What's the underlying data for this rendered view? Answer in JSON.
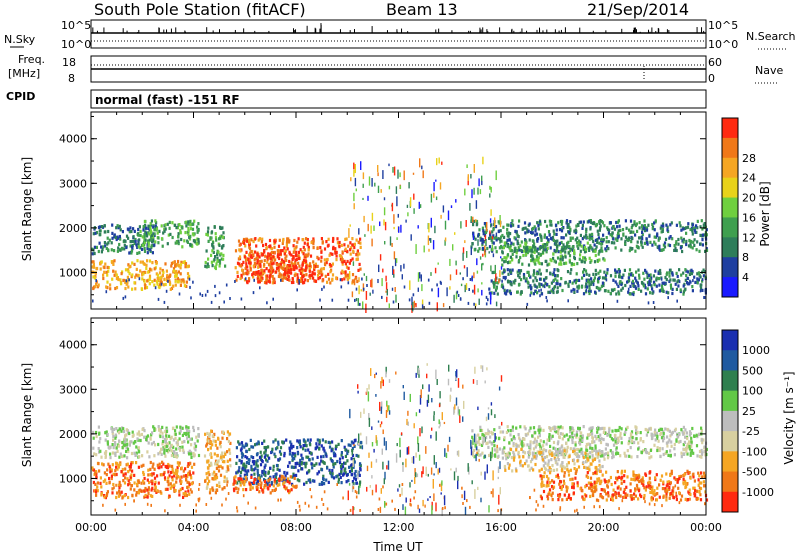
{
  "header": {
    "station": "South Pole Station (fitACF)",
    "beam": "Beam 13",
    "date": "21/Sep/2014"
  },
  "noise_panel": {
    "left_label": "N.Sky",
    "right_label": "N.Search",
    "left_ticks": [
      "10^5",
      "10^0"
    ],
    "right_ticks": [
      "10^5",
      "10^0"
    ]
  },
  "freq_panel": {
    "left_label_1": "Freq.",
    "left_label_2": "[MHz]",
    "right_label": "Nave",
    "left_ticks": [
      "18",
      "8"
    ],
    "right_ticks": [
      "60",
      "0"
    ]
  },
  "cpid": {
    "label": "CPID",
    "mode": "normal (fast) -151 RF"
  },
  "colors": {
    "power": [
      "#1a1aff",
      "#1f3fa0",
      "#2e7d5a",
      "#3f9f4f",
      "#6fcf3f",
      "#e8d21a",
      "#f5a623",
      "#f07818",
      "#ff2a10"
    ],
    "velocity": [
      "#1a2fb0",
      "#1f5aa0",
      "#2f7f4f",
      "#62c846",
      "#bdbdbd",
      "#d8d0a0",
      "#f5a623",
      "#f07818",
      "#ff2a10"
    ]
  },
  "chart_data": [
    {
      "type": "heatmap",
      "name": "Power",
      "ylabel": "Slant Range [km]",
      "ylim": [
        180,
        4600
      ],
      "y_ticks": [
        "1000",
        "2000",
        "3000",
        "4000"
      ],
      "xlim_hours": [
        0,
        24
      ],
      "colorbar_label": "Power [dB]",
      "colorbar_ticks": [
        "4",
        "8",
        "12",
        "16",
        "20",
        "24",
        "28"
      ],
      "bands": [
        {
          "t0": 0.0,
          "t1": 2.5,
          "r0": 1450,
          "r1": 2100,
          "level": 2
        },
        {
          "t0": 0.0,
          "t1": 3.8,
          "r0": 650,
          "r1": 1300,
          "level": 6
        },
        {
          "t0": 1.8,
          "t1": 4.2,
          "r0": 1600,
          "r1": 2200,
          "level": 3
        },
        {
          "t0": 4.4,
          "t1": 5.2,
          "r0": 1100,
          "r1": 2100,
          "level": 3
        },
        {
          "t0": 5.6,
          "t1": 10.5,
          "r0": 800,
          "r1": 1800,
          "level": 7
        },
        {
          "t0": 6.0,
          "t1": 8.5,
          "r0": 800,
          "r1": 1500,
          "level": 8
        },
        {
          "t0": 14.8,
          "t1": 24.0,
          "r0": 1500,
          "r1": 2200,
          "level": 2
        },
        {
          "t0": 16.0,
          "t1": 20.0,
          "r0": 1200,
          "r1": 1700,
          "level": 3
        },
        {
          "t0": 15.5,
          "t1": 24.0,
          "r0": 550,
          "r1": 1100,
          "level": 2
        }
      ]
    },
    {
      "type": "heatmap",
      "name": "Velocity",
      "ylabel": "Slant Range [km]",
      "ylim": [
        180,
        4600
      ],
      "y_ticks": [
        "1000",
        "2000",
        "3000",
        "4000"
      ],
      "xlim_hours": [
        0,
        24
      ],
      "x_ticks": [
        "00:00",
        "04:00",
        "08:00",
        "12:00",
        "16:00",
        "20:00",
        "00:00"
      ],
      "xlabel": "Time UT",
      "colorbar_label": "Velocity [m s⁻¹]",
      "colorbar_ticks": [
        "1000",
        "500",
        "100",
        "25",
        "-25",
        "-100",
        "-500",
        "-1000"
      ],
      "bands": [
        {
          "t0": 0.0,
          "t1": 4.2,
          "r0": 1500,
          "r1": 2200,
          "level": 4
        },
        {
          "t0": 0.0,
          "t1": 4.0,
          "r0": 600,
          "r1": 1400,
          "level": 7
        },
        {
          "t0": 4.4,
          "t1": 5.4,
          "r0": 700,
          "r1": 2100,
          "level": 6
        },
        {
          "t0": 5.6,
          "t1": 10.5,
          "r0": 900,
          "r1": 1900,
          "level": 1
        },
        {
          "t0": 5.5,
          "t1": 8.0,
          "r0": 700,
          "r1": 1100,
          "level": 7
        },
        {
          "t0": 14.8,
          "t1": 24.0,
          "r0": 1500,
          "r1": 2200,
          "level": 4
        },
        {
          "t0": 16.0,
          "t1": 20.0,
          "r0": 1200,
          "r1": 1700,
          "level": 5
        },
        {
          "t0": 17.5,
          "t1": 24.0,
          "r0": 550,
          "r1": 1200,
          "level": 7
        }
      ]
    }
  ]
}
